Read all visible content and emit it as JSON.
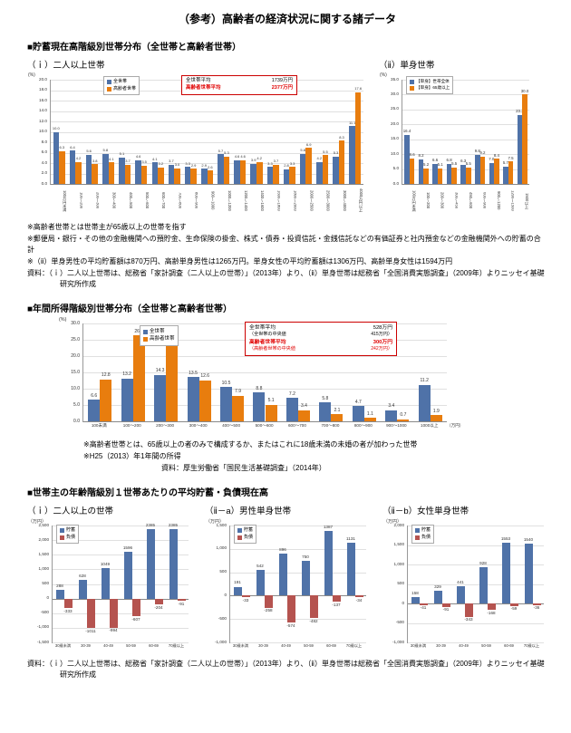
{
  "page_title": "（参考）高齢者の経済状況に関する諸データ",
  "colors": {
    "all_households_blue": "#4f72a8",
    "elderly_orange": "#e87d0e",
    "debt_red": "#b5534f",
    "annotation_border_red": "#cc0000",
    "annotation_text_red": "#e00000"
  },
  "section1": {
    "heading": "■貯蓄現在高階級別世帯分布（全世帯と高齢者世帯）",
    "chart_i_title": "（ｉ）二人以上世帯",
    "chart_ii_title": "（ⅱ）単身世帯",
    "notes": [
      "※高齢者世帯とは世帯主が65歳以上の世帯を指す",
      "※郵便局・銀行・その他の金融機関への預貯金、生命保険の掛金、株式・債券・投資信託・金銭信託などの有価証券と社内預金などの金融機関外への貯蓄の合計",
      "※（ⅱ）単身男性の平均貯蓄額は870万円、高齢単身男性は1265万円。単身女性の平均貯蓄額は1306万円、高齢単身女性は1594万円"
    ],
    "source": "資料：（ｉ）二人以上世帯は、総務省「家計調査（二人以上の世帯）」（2013年）より、（ⅱ）単身世帯は総務省「全国消費実態調査」（2009年）よりニッセイ基礎研究所作成"
  },
  "section2": {
    "heading": "■年間所得階級別世帯分布（全世帯と高齢者世帯）",
    "notes": [
      "※高齢者世帯とは、65歳以上の者のみで構成するか、またはこれに18歳未満の未婚の者が加わった世帯",
      "※H25（2013）年1年間の所得"
    ],
    "source": "資料：厚生労働省「国民生活基礎調査」（2014年）"
  },
  "section3": {
    "heading": "■世帯主の年齢階級別１世帯あたりの平均貯蓄・負債現在高",
    "chart_i_title": "（ｉ）二人以上の世帯",
    "chart_iia_title": "（ⅱ－a）男性単身世帯",
    "chart_iib_title": "（ⅱ－b）女性単身世帯",
    "source": "資料：（ｉ）二人以上世帯は、総務省「家計調査（二人以上の世帯）」（2013年）より、（ⅱ）単身世帯は総務省「全国消費実態調査」（2009年）よりニッセイ基礎研究所作成"
  },
  "chart_data": [
    {
      "id": "savings_two_person",
      "type": "bar",
      "title": "（ｉ）二人以上世帯",
      "ylabel": "(%)",
      "ylim": [
        0,
        20
      ],
      "ytick_step": 2,
      "categories": [
        "100万円未満",
        "100～200",
        "200～300",
        "300～400",
        "400～500",
        "500～600",
        "600～700",
        "700～800",
        "800～900",
        "900～1000",
        "1000～1200",
        "1200～1400",
        "1400～1600",
        "1600～1800",
        "1800～2000",
        "2000～2500",
        "2500～3000",
        "3000～4000",
        "4000万円以上"
      ],
      "series": [
        {
          "name": "全世帯",
          "color": "#4f72a8",
          "values": [
            10.0,
            6.4,
            5.6,
            5.8,
            5.1,
            4.6,
            4.1,
            3.7,
            3.3,
            2.9,
            5.7,
            4.6,
            3.9,
            3.3,
            2.8,
            5.8,
            4.2,
            5.3,
            11.1
          ]
        },
        {
          "name": "高齢者世帯",
          "color": "#e87d0e",
          "values": [
            6.3,
            4.2,
            3.8,
            4.1,
            3.7,
            3.5,
            3.2,
            3.0,
            2.9,
            2.6,
            5.3,
            4.6,
            4.2,
            3.7,
            3.3,
            6.9,
            5.5,
            8.3,
            17.6
          ]
        }
      ],
      "annotation": [
        {
          "label": "全世帯平均",
          "value": "1739万円",
          "red": false
        },
        {
          "label": "高齢者世帯平均",
          "value": "2377万円",
          "red": true
        }
      ]
    },
    {
      "id": "savings_single",
      "type": "bar",
      "title": "（ⅱ）単身世帯",
      "ylabel": "(%)",
      "ylim": [
        0,
        35
      ],
      "ytick_step": 5,
      "categories": [
        "100万円未満",
        "100～200",
        "200～300",
        "300～450",
        "450～600",
        "600～900",
        "900～1200",
        "1200～1500",
        "1500以上"
      ],
      "series": [
        {
          "name": "【単身】世帯全体",
          "color": "#4f72a8",
          "values": [
            16.4,
            8.2,
            6.6,
            6.8,
            6.3,
            9.8,
            7.0,
            5.7,
            23.2
          ]
        },
        {
          "name": "【単身】65歳以上",
          "color": "#e87d0e",
          "values": [
            8.6,
            5.2,
            5.1,
            5.5,
            5.5,
            9.2,
            8.4,
            7.5,
            30.0
          ]
        }
      ]
    },
    {
      "id": "income_distribution",
      "type": "bar",
      "title": "年間所得階級別世帯分布",
      "ylabel": "(%)",
      "x_unit": "（万円）",
      "ylim": [
        0,
        30
      ],
      "ytick_step": 5,
      "categories": [
        "100未満",
        "100～200",
        "200～300",
        "300～400",
        "400～500",
        "500～600",
        "600～700",
        "700～800",
        "800～900",
        "900～1000",
        "1000以上"
      ],
      "series": [
        {
          "name": "全世帯",
          "color": "#4f72a8",
          "values": [
            6.6,
            13.2,
            14.3,
            13.5,
            10.5,
            8.8,
            7.2,
            5.8,
            4.7,
            3.4,
            11.2
          ]
        },
        {
          "name": "高齢者世帯",
          "color": "#e87d0e",
          "values": [
            12.8,
            26.3,
            23.3,
            12.6,
            7.9,
            5.1,
            3.4,
            2.1,
            1.1,
            0.7,
            1.9
          ]
        }
      ],
      "annotation": [
        {
          "label": "全世帯平均",
          "value": "528万円",
          "red": false
        },
        {
          "label": "（全世帯の中央値",
          "value": "415万円）",
          "red": false,
          "small": true
        },
        {
          "label": "高齢者世帯平均",
          "value": "300万円",
          "red": true
        },
        {
          "label": "（高齢者世帯の中央値",
          "value": "242万円）",
          "red": true,
          "small": true
        }
      ]
    },
    {
      "id": "savings_debt_two_person",
      "type": "bar",
      "title": "（ｉ）二人以上の世帯",
      "ylabel": "（万円）",
      "ylim": [
        -1500,
        2500
      ],
      "ytick_step": 500,
      "categories": [
        "30歳未満",
        "30-39",
        "40-49",
        "50-59",
        "60-69",
        "70歳以上"
      ],
      "series": [
        {
          "name": "貯蓄",
          "color": "#4f72a8",
          "values": [
            288,
            628,
            1049,
            1596,
            2385,
            2385
          ]
        },
        {
          "name": "負債",
          "color": "#b5534f",
          "values": [
            -333,
            -1011,
            -994,
            -607,
            -204,
            -91
          ]
        }
      ]
    },
    {
      "id": "savings_debt_male",
      "type": "bar",
      "title": "（ⅱ－a）男性単身世帯",
      "ylabel": "（万円）",
      "ylim": [
        -1000,
        1500
      ],
      "ytick_step": 500,
      "categories": [
        "30歳未満",
        "30-39",
        "40-49",
        "50-59",
        "60-69",
        "70歳以上"
      ],
      "series": [
        {
          "name": "貯蓄",
          "color": "#4f72a8",
          "values": [
            191,
            542,
            896,
            750,
            1387,
            1131
          ]
        },
        {
          "name": "負債",
          "color": "#b5534f",
          "values": [
            -33,
            -258,
            -574,
            -482,
            -137,
            -34
          ]
        }
      ]
    },
    {
      "id": "savings_debt_female",
      "type": "bar",
      "title": "（ⅱ－b）女性単身世帯",
      "ylabel": "（万円）",
      "ylim": [
        -1000,
        2000
      ],
      "ytick_step": 500,
      "categories": [
        "30歳未満",
        "30-39",
        "40-49",
        "50-59",
        "60-69",
        "70歳以上"
      ],
      "series": [
        {
          "name": "貯蓄",
          "color": "#4f72a8",
          "values": [
            158,
            329,
            441,
            928,
            1553,
            1540
          ]
        },
        {
          "name": "負債",
          "color": "#b5534f",
          "values": [
            -41,
            -91,
            -343,
            -168,
            -59,
            -36
          ]
        }
      ]
    }
  ]
}
